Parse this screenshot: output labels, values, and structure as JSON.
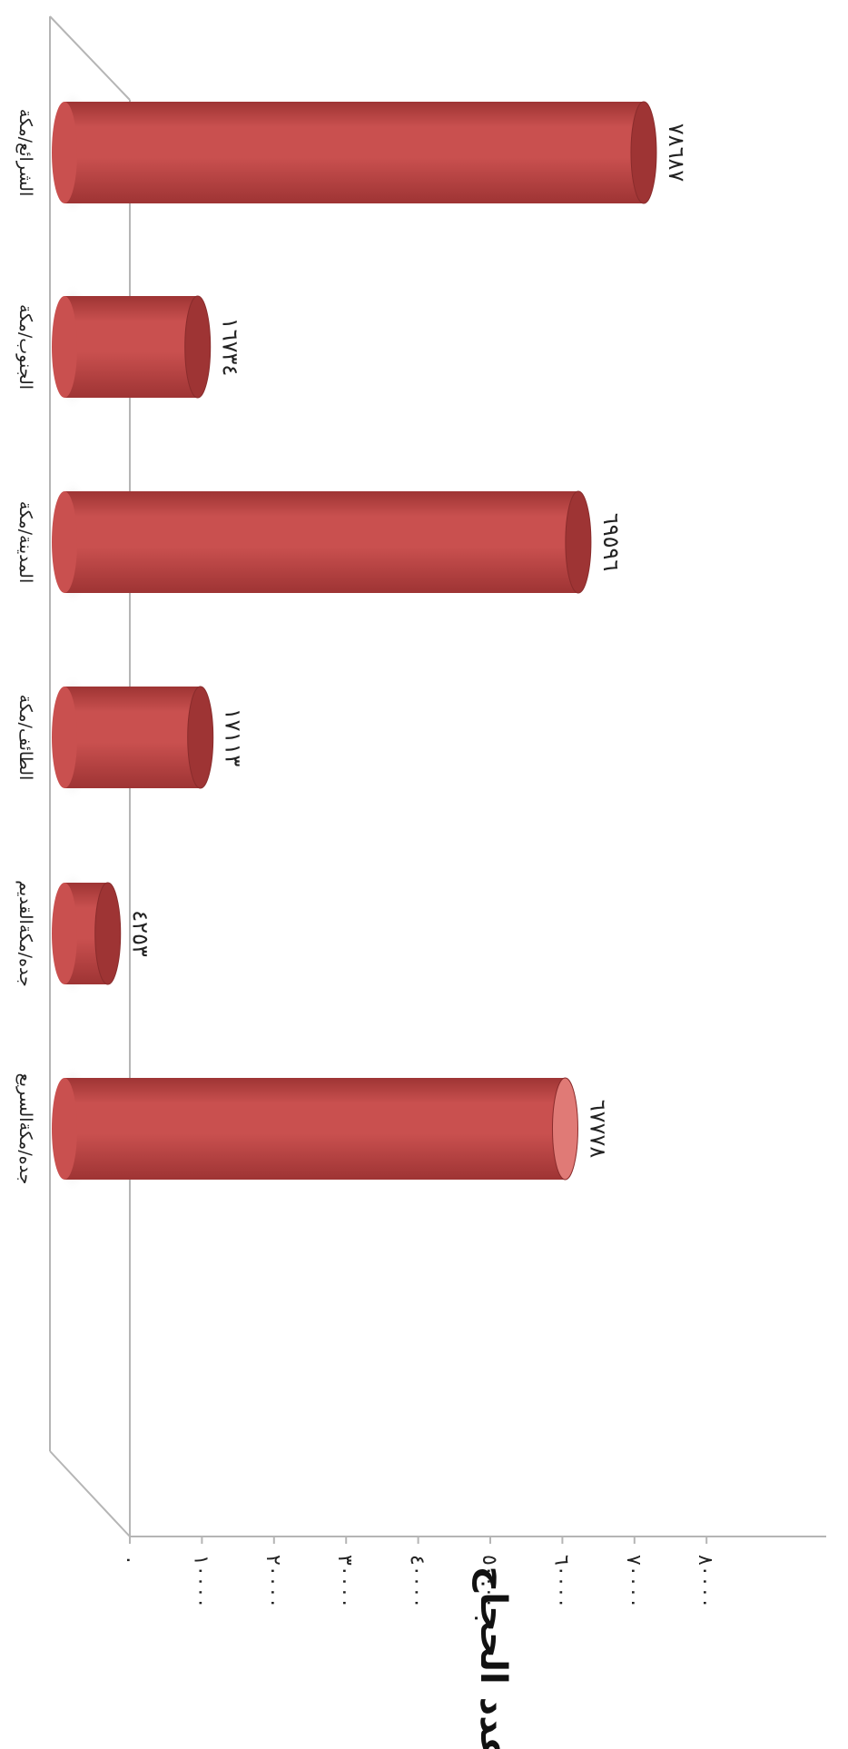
{
  "chart_data": {
    "type": "bar",
    "orientation": "horizontal",
    "style": "3d-cylinder",
    "categories": [
      "الشرائع/مكة",
      "الجنوب/مكة",
      "المدينة/مكة",
      "الطائف/مكة",
      "جده/مكةالقديم",
      "جده/مكةالسريع"
    ],
    "values": [
      78687,
      16734,
      69596,
      17113,
      4253,
      67778
    ],
    "value_labels": [
      "٧٨٦٨٧",
      "١٦٧٣٤",
      "٦٩٥٩٦",
      "١٧١١٣",
      "٤٢٥٣",
      "٦٧٧٧٨"
    ],
    "axis_ticks": [
      0,
      10000,
      20000,
      30000,
      40000,
      50000,
      60000,
      70000,
      80000
    ],
    "axis_tick_labels": [
      "٠",
      "١٠٠٠٠",
      "٢٠٠٠٠",
      "٣٠٠٠٠",
      "٤٠٠٠٠",
      "٥٠٠٠٠",
      "٦٠٠٠٠",
      "٧٠٠٠٠",
      "٨٠٠٠٠"
    ],
    "value_axis_title": "عدد الحجاج",
    "xlim": [
      0,
      80000
    ],
    "bar_color": "#c9504f",
    "bar_dark": "#9e3434",
    "bar_light": "#e07a76",
    "grid": false,
    "legend": "none"
  }
}
